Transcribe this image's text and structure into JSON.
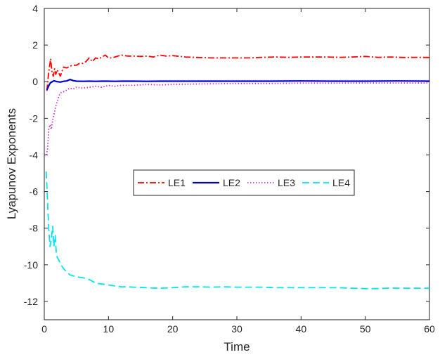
{
  "chart_data": {
    "type": "line",
    "title": "",
    "xlabel": "Time",
    "ylabel": "Lyapunov Exponents",
    "xlim": [
      0,
      60
    ],
    "ylim": [
      -13,
      4
    ],
    "xticks": [
      0,
      10,
      20,
      30,
      40,
      50,
      60
    ],
    "yticks": [
      -12,
      -10,
      -8,
      -6,
      -4,
      -2,
      0,
      2,
      4
    ],
    "grid": false,
    "legend": {
      "placement": "center",
      "orientation": "horizontal"
    },
    "series": [
      {
        "name": "LE1",
        "color": "#ff0000",
        "style": "dash-dot",
        "x": [
          0.4,
          0.6,
          0.8,
          1.0,
          1.2,
          1.4,
          1.6,
          1.8,
          2.0,
          2.5,
          3.0,
          3.5,
          4.0,
          4.5,
          5.0,
          5.5,
          6.0,
          6.5,
          7.0,
          7.5,
          8.0,
          8.5,
          9.0,
          9.5,
          10.0,
          10.5,
          11.0,
          12.0,
          13.0,
          14.0,
          15.0,
          16.0,
          17.0,
          18.0,
          19.0,
          20.0,
          22.0,
          24.0,
          26.0,
          28.0,
          30.0,
          32.0,
          34.0,
          36.0,
          38.0,
          40.0,
          42.0,
          44.0,
          46.0,
          48.0,
          50.0,
          52.0,
          54.0,
          56.0,
          58.0,
          60.0
        ],
        "y": [
          -0.5,
          0.2,
          0.8,
          1.25,
          0.5,
          0.3,
          0.7,
          0.4,
          0.65,
          0.3,
          0.8,
          0.75,
          0.85,
          0.9,
          0.9,
          1.0,
          1.0,
          1.1,
          1.3,
          1.1,
          1.3,
          1.25,
          1.35,
          1.45,
          1.3,
          1.3,
          1.35,
          1.45,
          1.4,
          1.4,
          1.38,
          1.4,
          1.35,
          1.45,
          1.4,
          1.42,
          1.35,
          1.32,
          1.3,
          1.3,
          1.3,
          1.3,
          1.33,
          1.35,
          1.33,
          1.35,
          1.35,
          1.35,
          1.33,
          1.35,
          1.38,
          1.33,
          1.35,
          1.32,
          1.33,
          1.32
        ]
      },
      {
        "name": "LE2",
        "color": "#0000cc",
        "style": "solid",
        "x": [
          0.4,
          0.6,
          0.8,
          1.0,
          1.5,
          2.0,
          2.5,
          3.0,
          3.5,
          4.0,
          4.5,
          5.0,
          6.0,
          7.0,
          8.0,
          9.0,
          10.0,
          11.0,
          12.0,
          14.0,
          16.0,
          18.0,
          20.0,
          25.0,
          30.0,
          35.0,
          40.0,
          45.0,
          50.0,
          55.0,
          60.0
        ],
        "y": [
          -0.45,
          -0.3,
          -0.15,
          -0.05,
          0.05,
          0.0,
          -0.02,
          0.02,
          0.04,
          0.12,
          0.06,
          0.03,
          0.02,
          0.03,
          0.02,
          0.03,
          0.03,
          0.02,
          0.03,
          0.03,
          0.02,
          0.03,
          0.03,
          0.03,
          0.03,
          0.03,
          0.04,
          0.03,
          0.03,
          0.04,
          0.03
        ]
      },
      {
        "name": "LE3",
        "color": "#cc33cc",
        "style": "dotted",
        "x": [
          0.3,
          0.5,
          0.7,
          0.9,
          1.1,
          1.3,
          1.5,
          1.7,
          1.9,
          2.1,
          2.3,
          2.6,
          3.0,
          3.5,
          4.0,
          4.5,
          5.0,
          6.0,
          7.0,
          8.0,
          9.0,
          10.0,
          11.0,
          12.0,
          14.0,
          16.0,
          18.0,
          20.0,
          25.0,
          30.0,
          35.0,
          40.0,
          45.0,
          50.0,
          55.0,
          60.0
        ],
        "y": [
          -4.0,
          -3.7,
          -2.6,
          -2.35,
          -2.6,
          -2.1,
          -1.8,
          -1.5,
          -1.2,
          -1.0,
          -0.75,
          -0.6,
          -0.55,
          -0.45,
          -0.35,
          -0.4,
          -0.3,
          -0.35,
          -0.3,
          -0.25,
          -0.3,
          -0.2,
          -0.25,
          -0.2,
          -0.2,
          -0.15,
          -0.18,
          -0.15,
          -0.12,
          -0.1,
          -0.1,
          -0.08,
          -0.08,
          -0.07,
          -0.07,
          -0.07
        ]
      },
      {
        "name": "LE4",
        "color": "#00e5ee",
        "style": "dashed",
        "x": [
          0.3,
          0.5,
          0.7,
          0.9,
          1.1,
          1.3,
          1.5,
          1.7,
          1.9,
          2.2,
          2.6,
          3.0,
          3.5,
          4.0,
          4.5,
          5.0,
          6.0,
          7.0,
          8.0,
          9.0,
          10.0,
          11.0,
          12.0,
          13.0,
          14.0,
          16.0,
          18.0,
          20.0,
          22.0,
          24.0,
          26.0,
          28.0,
          30.0,
          32.0,
          34.0,
          36.0,
          38.0,
          40.0,
          42.0,
          44.0,
          46.0,
          48.0,
          50.0,
          52.0,
          54.0,
          56.0,
          58.0,
          60.0
        ],
        "y": [
          -4.9,
          -6.5,
          -8.1,
          -9.0,
          -8.6,
          -7.9,
          -9.0,
          -8.4,
          -9.5,
          -9.7,
          -10.0,
          -10.2,
          -10.4,
          -10.55,
          -10.6,
          -10.65,
          -10.7,
          -10.8,
          -11.0,
          -11.05,
          -11.1,
          -11.15,
          -11.2,
          -11.2,
          -11.22,
          -11.25,
          -11.28,
          -11.25,
          -11.2,
          -11.2,
          -11.22,
          -11.2,
          -11.22,
          -11.22,
          -11.22,
          -11.25,
          -11.25,
          -11.25,
          -11.25,
          -11.25,
          -11.25,
          -11.28,
          -11.3,
          -11.3,
          -11.27,
          -11.28,
          -11.28,
          -11.28
        ]
      }
    ]
  }
}
